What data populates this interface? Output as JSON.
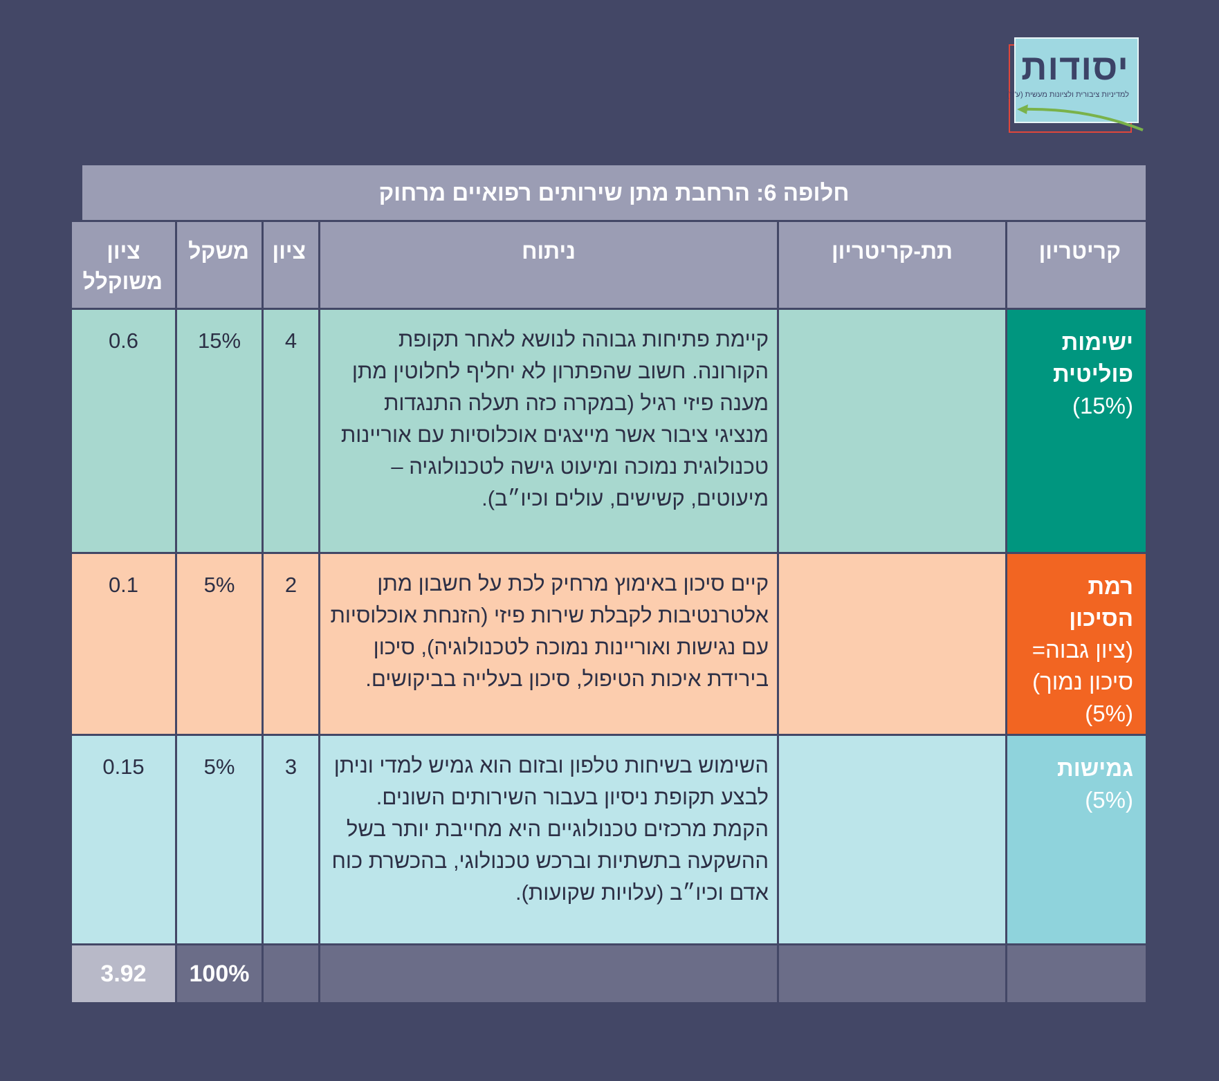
{
  "logo": {
    "title": "יסודות",
    "subtitle": "למדיניות ציבורית ולציונות מעשית (ע\"ר)"
  },
  "table": {
    "title": "חלופה 6: הרחבת מתן שירותים רפואיים מרחוק",
    "headers": {
      "criterion": "קריטריון",
      "sub_criterion": "תת-קריטריון",
      "analysis": "ניתוח",
      "score": "ציון",
      "weight": "משקל",
      "weighted_score_line1": "ציון",
      "weighted_score_line2": "משוקלל"
    },
    "rows": [
      {
        "criterion_line1": "ישימות",
        "criterion_line2": "פוליטית",
        "criterion_pct": "(15%)",
        "sub_criterion": "",
        "analysis": "קיימת פתיחות גבוהה לנושא לאחר תקופת הקורונה. חשוב שהפתרון לא יחליף לחלוטין מתן מענה פיזי רגיל (במקרה כזה תעלה התנגדות מנציגי ציבור אשר מייצגים אוכלוסיות עם אוריינות טכנולוגית נמוכה ומיעוט גישה לטכנולוגיה – מיעוטים, קשישים, עולים וכיו״ב).",
        "score": "4",
        "weight": "15%",
        "weighted_score": "0.6"
      },
      {
        "criterion_line1": "רמת",
        "criterion_line2": "הסיכון",
        "criterion_line3": "(ציון גבוה=",
        "criterion_line4": "סיכון נמוך)",
        "criterion_pct": "(5%)",
        "sub_criterion": "",
        "analysis": "קיים סיכון באימוץ מרחיק לכת על חשבון מתן אלטרנטיבות לקבלת שירות פיזי (הזנחת אוכלוסיות עם נגישות ואוריינות נמוכה לטכנולוגיה), סיכון בירידת איכות הטיפול, סיכון בעלייה בביקושים.",
        "score": "2",
        "weight": "5%",
        "weighted_score": "0.1"
      },
      {
        "criterion_line1": "גמישות",
        "criterion_pct": "(5%)",
        "sub_criterion": "",
        "analysis": "השימוש בשיחות טלפון ובזום הוא גמיש למדי וניתן לבצע תקופת ניסיון בעבור השירותים השונים. הקמת מרכזים טכנולוגיים היא מחייבת יותר בשל ההשקעה בתשתיות וברכש טכנולוגי, בהכשרת כוח אדם וכיו״ב (עלויות שקועות).",
        "score": "3",
        "weight": "5%",
        "weighted_score": "0.15"
      }
    ],
    "totals": {
      "weight": "100%",
      "weighted_score": "3.92"
    }
  }
}
